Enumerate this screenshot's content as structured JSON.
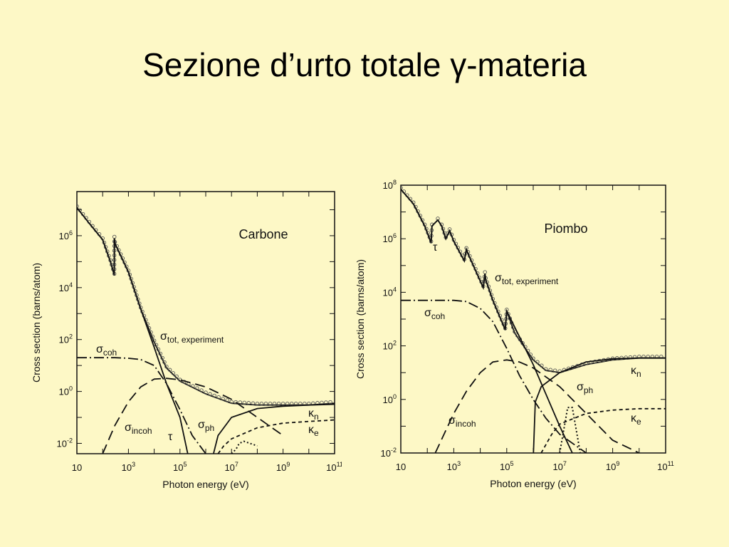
{
  "slide": {
    "title": "Sezione d’urto totale γ-materia"
  },
  "chart_data": [
    {
      "type": "line",
      "title": "Carbone",
      "xlabel": "Photon energy (eV)",
      "ylabel": "Cross section (barns/atom)",
      "xscale": "log",
      "yscale": "log",
      "xlim": [
        10,
        100000000000.0
      ],
      "ylim": [
        0.004,
        50000000.0
      ],
      "x_ticks": [
        "10",
        "10^3",
        "10^5",
        "10^7",
        "10^9",
        "10^11"
      ],
      "y_ticks": [
        "10^-2",
        "10^0",
        "10^2",
        "10^4",
        "10^6"
      ],
      "labels": {
        "tot": "σtot, experiment",
        "coh": "σcoh",
        "incoh": "σincoh",
        "tau": "τ",
        "ph": "σph",
        "kn": "κn",
        "ke": "κe"
      },
      "series": [
        {
          "key": "tot",
          "style": "solid-dots",
          "x": [
            10,
            30,
            100,
            200,
            284,
            285,
            300,
            1000,
            3000,
            10000,
            30000,
            100000,
            1000000,
            10000000,
            100000000,
            10000000000,
            100000000000
          ],
          "y": [
            12000000,
            3000000,
            700000,
            100000,
            30000,
            800000,
            500000,
            40000,
            1500,
            80,
            8,
            2.5,
            0.8,
            0.35,
            0.3,
            0.3,
            0.35
          ]
        },
        {
          "key": "tau",
          "style": "solid",
          "x": [
            10,
            30,
            100,
            200,
            284,
            285,
            300,
            1000,
            3000,
            10000,
            30000,
            100000,
            200000
          ],
          "y": [
            12000000,
            3000000,
            700000,
            100000,
            30000,
            800000,
            500000,
            40000,
            1500,
            50,
            2,
            0.1,
            0.004
          ]
        },
        {
          "key": "coh",
          "style": "dash-dot",
          "x": [
            10,
            300,
            1000,
            3000,
            10000,
            30000,
            100000,
            300000,
            1000000
          ],
          "y": [
            20,
            20,
            19,
            17,
            10,
            2,
            0.2,
            0.02,
            0.004
          ]
        },
        {
          "key": "incoh",
          "style": "dashed",
          "x": [
            100,
            300,
            1000,
            3000,
            10000,
            30000,
            100000,
            1000000,
            10000000,
            100000000,
            1000000000
          ],
          "y": [
            0.004,
            0.05,
            0.4,
            1.5,
            3,
            3.2,
            2.8,
            1.5,
            0.5,
            0.1,
            0.02
          ]
        },
        {
          "key": "ph",
          "style": "dotted",
          "x": [
            10000000,
            15000000,
            20000000,
            30000000,
            100000000
          ],
          "y": [
            0.004,
            0.006,
            0.01,
            0.012,
            0.008
          ]
        },
        {
          "key": "kn",
          "style": "solid",
          "x": [
            2000000,
            3000000,
            10000000,
            100000000,
            1000000000,
            10000000000,
            100000000000
          ],
          "y": [
            0.004,
            0.02,
            0.1,
            0.22,
            0.27,
            0.3,
            0.32
          ]
        },
        {
          "key": "ke",
          "style": "short-dash",
          "x": [
            3000000,
            5000000,
            10000000,
            100000000,
            1000000000,
            10000000000,
            100000000000
          ],
          "y": [
            0.004,
            0.008,
            0.015,
            0.04,
            0.06,
            0.07,
            0.08
          ]
        }
      ]
    },
    {
      "type": "line",
      "title": "Piombo",
      "xlabel": "Photon energy (eV)",
      "ylabel": "Cross section (barns/atom)",
      "xscale": "log",
      "yscale": "log",
      "xlim": [
        10,
        100000000000.0
      ],
      "ylim": [
        0.01,
        100000000.0
      ],
      "x_ticks": [
        "10",
        "10^3",
        "10^5",
        "10^7",
        "10^9",
        "10^11"
      ],
      "y_ticks": [
        "10^-2",
        "10^0",
        "10^2",
        "10^4",
        "10^6",
        "10^8"
      ],
      "labels": {
        "tot": "σtot, experiment",
        "coh": "σcoh",
        "incoh": "σincoh",
        "tau": "τ",
        "ph": "σph",
        "kn": "κn",
        "ke": "κe"
      },
      "series": [
        {
          "key": "tot",
          "style": "solid-dots",
          "x": [
            10,
            30,
            80,
            140,
            150,
            250,
            350,
            500,
            700,
            1000,
            2500,
            3000,
            4000,
            13000,
            15000,
            16000,
            30000,
            88000,
            100000,
            200000,
            1000000,
            3000000,
            10000000,
            100000000,
            1000000000,
            10000000000,
            100000000000
          ],
          "y": [
            70000000,
            20000000,
            3000000,
            700000,
            3000000,
            5000000,
            3000000,
            1000000,
            2000000,
            800000,
            150000,
            400000,
            200000,
            15000,
            50000,
            30000,
            5000,
            400,
            2000,
            300,
            30,
            12,
            10,
            20,
            30,
            35,
            35
          ]
        },
        {
          "key": "tau",
          "style": "solid",
          "x": [
            10,
            30,
            80,
            140,
            150,
            250,
            350,
            500,
            700,
            1000,
            2500,
            3000,
            4000,
            13000,
            15000,
            16000,
            30000,
            88000,
            100000,
            1000000,
            10000000,
            30000000
          ],
          "y": [
            70000000,
            20000000,
            3000000,
            700000,
            3000000,
            5000000,
            3000000,
            1000000,
            2000000,
            800000,
            150000,
            400000,
            200000,
            15000,
            50000,
            30000,
            5000,
            400,
            2000,
            20,
            0.1,
            0.01
          ]
        },
        {
          "key": "coh",
          "style": "dash-dot",
          "x": [
            10,
            1000,
            3000,
            10000,
            30000,
            100000,
            300000,
            1000000,
            3000000,
            10000000,
            100000000
          ],
          "y": [
            5000,
            5000,
            4500,
            2500,
            800,
            80,
            8,
            1,
            0.2,
            0.05,
            0.01
          ]
        },
        {
          "key": "incoh",
          "style": "dashed",
          "x": [
            200,
            1000,
            3000,
            10000,
            30000,
            100000,
            300000,
            1000000,
            10000000,
            100000000,
            1000000000,
            10000000000
          ],
          "y": [
            0.01,
            0.3,
            2,
            10,
            25,
            30,
            25,
            15,
            3,
            0.3,
            0.03,
            0.01
          ]
        },
        {
          "key": "ph",
          "style": "dotted",
          "x": [
            10000000,
            15000000,
            20000000,
            30000000,
            60000000
          ],
          "y": [
            0.01,
            0.1,
            0.5,
            0.5,
            0.01
          ]
        },
        {
          "key": "kn",
          "style": "solid",
          "x": [
            1020000,
            1200000,
            2000000,
            10000000,
            100000000,
            1000000000,
            10000000000,
            100000000000
          ],
          "y": [
            0.01,
            0.8,
            3,
            10,
            25,
            33,
            35,
            35
          ]
        },
        {
          "key": "ke",
          "style": "short-dash",
          "x": [
            2000000,
            5000000,
            10000000,
            100000000,
            1000000000,
            10000000000,
            100000000000
          ],
          "y": [
            0.01,
            0.05,
            0.12,
            0.3,
            0.4,
            0.45,
            0.45
          ]
        }
      ]
    }
  ]
}
